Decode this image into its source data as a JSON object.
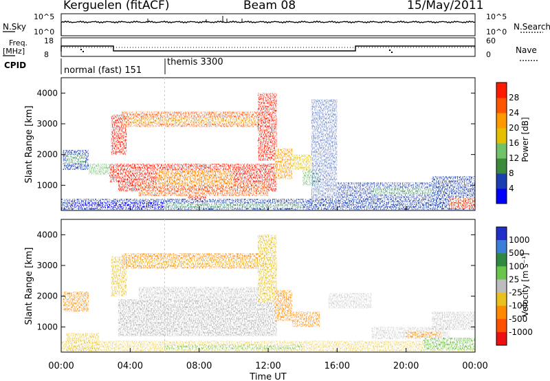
{
  "header": {
    "station": "Kerguelen (fitACF)",
    "beam": "Beam 08",
    "date": "15/May/2011"
  },
  "sky_panel": {
    "left_label": "N.Sky",
    "left_ticks": [
      "10^5",
      "10^0"
    ],
    "right_ticks": [
      "10^5",
      "10^0"
    ],
    "right_label": "N.Search"
  },
  "freq_panel": {
    "left_label_1": "Freq.",
    "left_label_2": "[MHz]",
    "left_ticks": [
      "18",
      "8"
    ],
    "right_ticks": [
      "60",
      "0"
    ],
    "right_label": "Nave"
  },
  "cpid": {
    "label": "CPID",
    "modes": [
      {
        "name": "normal (fast) 151",
        "start_hour": 0
      },
      {
        "name": "themis 3300",
        "start_hour": 6
      }
    ]
  },
  "colors": {
    "power_scale": [
      "#0000ff",
      "#1a3fb0",
      "#3a8a3a",
      "#72c26a",
      "#e6c000",
      "#ff9900",
      "#ff5500",
      "#ff1a00"
    ],
    "velocity_scale": [
      "#1f2fc8",
      "#3a7fd8",
      "#2f8a3f",
      "#6ac64a",
      "#bdbdbd",
      "#e8c020",
      "#ff8a00",
      "#ff5000",
      "#ee1010"
    ]
  },
  "chart_data": [
    {
      "type": "heatmap",
      "name": "power",
      "ylabel": "Slant Range [km]",
      "yticks": [
        "1000",
        "2000",
        "3000",
        "4000"
      ],
      "ylim": [
        180,
        4500
      ],
      "xlim": [
        0,
        24
      ],
      "colorbar_label": "Power [dB]",
      "colorbar_ticks": [
        "4",
        "8",
        "12",
        "16",
        "20",
        "24",
        "28"
      ],
      "colorbar_range": [
        0,
        30
      ]
    },
    {
      "type": "heatmap",
      "name": "velocity",
      "ylabel": "Slant Range [km]",
      "yticks": [
        "1000",
        "2000",
        "3000",
        "4000"
      ],
      "ylim": [
        180,
        4500
      ],
      "xlim": [
        0,
        24
      ],
      "xlabel": "Time UT",
      "xticks": [
        "00:00",
        "04:00",
        "08:00",
        "12:00",
        "16:00",
        "20:00",
        "00:00"
      ],
      "colorbar_label": "Velocity [m s⁻¹]",
      "colorbar_ticks": [
        "1000",
        "500",
        "100",
        "25",
        "-25",
        "-100",
        "-500",
        "-1000"
      ]
    }
  ]
}
